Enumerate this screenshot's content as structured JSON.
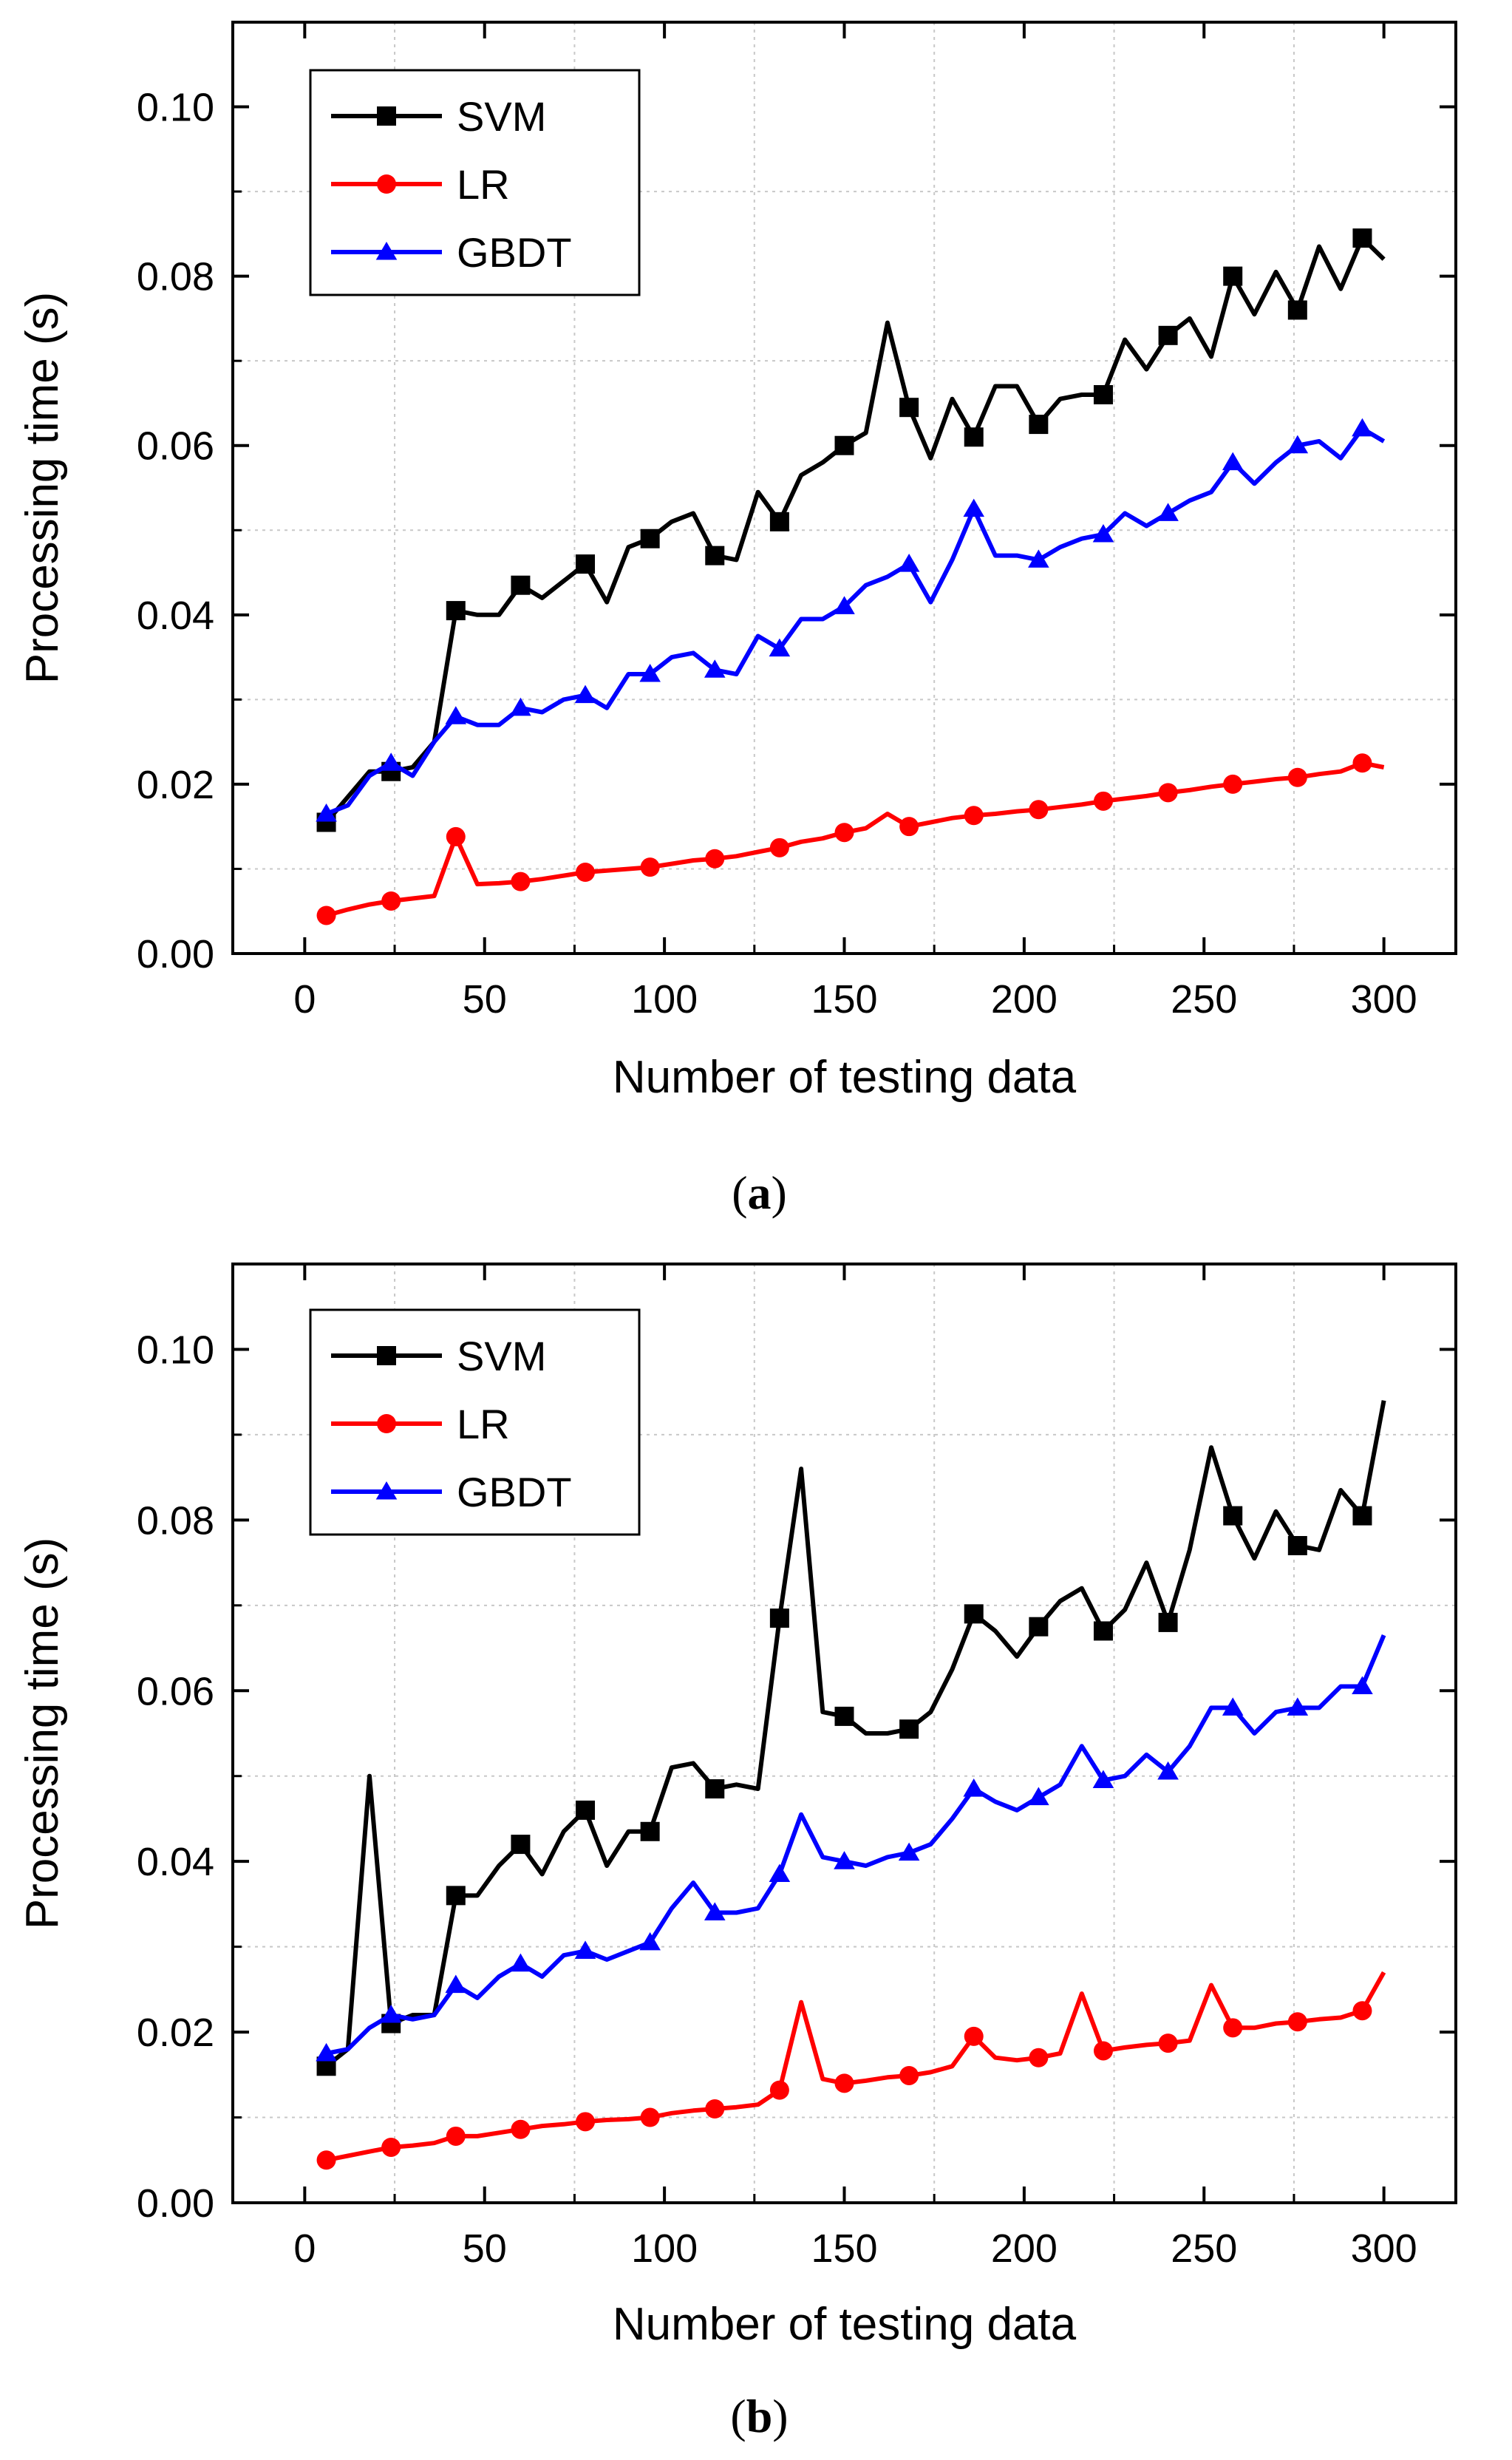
{
  "chart_data": [
    {
      "type": "line",
      "panel_label": "a",
      "xlabel": "Number of testing data",
      "ylabel": "Processing time (s)",
      "xlim": [
        -20,
        320
      ],
      "ylim": [
        0.0,
        0.11
      ],
      "x_ticks": [
        "0",
        "50",
        "100",
        "150",
        "200",
        "250",
        "300"
      ],
      "y_ticks": [
        "0.00",
        "0.02",
        "0.04",
        "0.06",
        "0.08",
        "0.10"
      ],
      "grid": true,
      "legend_position": "top-left",
      "series": [
        {
          "name": "SVM",
          "color": "#000000",
          "marker": "square",
          "x": [
            6,
            12,
            18,
            24,
            30,
            36,
            42,
            48,
            54,
            60,
            66,
            72,
            78,
            84,
            90,
            96,
            102,
            108,
            114,
            120,
            126,
            132,
            138,
            144,
            150,
            156,
            162,
            168,
            174,
            180,
            186,
            192,
            198,
            204,
            210,
            216,
            222,
            228,
            234,
            240,
            246,
            252,
            258,
            264,
            270,
            276,
            282,
            288,
            294,
            300
          ],
          "y": [
            0.0155,
            0.0185,
            0.0215,
            0.0215,
            0.022,
            0.025,
            0.0405,
            0.04,
            0.04,
            0.0435,
            0.042,
            0.044,
            0.046,
            0.0415,
            0.048,
            0.049,
            0.051,
            0.052,
            0.047,
            0.0465,
            0.0545,
            0.051,
            0.0565,
            0.058,
            0.06,
            0.0615,
            0.0745,
            0.0645,
            0.0585,
            0.0655,
            0.061,
            0.067,
            0.067,
            0.0625,
            0.0655,
            0.066,
            0.066,
            0.0725,
            0.069,
            0.073,
            0.075,
            0.0705,
            0.08,
            0.0755,
            0.0805,
            0.076,
            0.0835,
            0.0785,
            0.0845,
            0.082
          ]
        },
        {
          "name": "LR",
          "color": "#ff0000",
          "marker": "circle",
          "x": [
            6,
            12,
            18,
            24,
            30,
            36,
            42,
            48,
            54,
            60,
            66,
            72,
            78,
            84,
            90,
            96,
            102,
            108,
            114,
            120,
            126,
            132,
            138,
            144,
            150,
            156,
            162,
            168,
            174,
            180,
            186,
            192,
            198,
            204,
            210,
            216,
            222,
            228,
            234,
            240,
            246,
            252,
            258,
            264,
            270,
            276,
            282,
            288,
            294,
            300
          ],
          "y": [
            0.0045,
            0.0052,
            0.0058,
            0.0062,
            0.0065,
            0.0068,
            0.0138,
            0.0082,
            0.0083,
            0.0085,
            0.0088,
            0.0092,
            0.0096,
            0.0098,
            0.01,
            0.0102,
            0.0106,
            0.011,
            0.0112,
            0.0115,
            0.012,
            0.0125,
            0.0132,
            0.0136,
            0.0143,
            0.0148,
            0.0165,
            0.015,
            0.0155,
            0.016,
            0.0163,
            0.0165,
            0.0168,
            0.017,
            0.0173,
            0.0176,
            0.018,
            0.0183,
            0.0186,
            0.019,
            0.0193,
            0.0197,
            0.02,
            0.0203,
            0.0206,
            0.0208,
            0.0212,
            0.0215,
            0.0225,
            0.022
          ]
        },
        {
          "name": "GBDT",
          "color": "#0000ff",
          "marker": "triangle",
          "x": [
            6,
            12,
            18,
            24,
            30,
            36,
            42,
            48,
            54,
            60,
            66,
            72,
            78,
            84,
            90,
            96,
            102,
            108,
            114,
            120,
            126,
            132,
            138,
            144,
            150,
            156,
            162,
            168,
            174,
            180,
            186,
            192,
            198,
            204,
            210,
            216,
            222,
            228,
            234,
            240,
            246,
            252,
            258,
            264,
            270,
            276,
            282,
            288,
            294,
            300
          ],
          "y": [
            0.0165,
            0.0175,
            0.021,
            0.0225,
            0.021,
            0.025,
            0.028,
            0.027,
            0.027,
            0.029,
            0.0285,
            0.03,
            0.0305,
            0.029,
            0.033,
            0.033,
            0.035,
            0.0355,
            0.0335,
            0.033,
            0.0375,
            0.036,
            0.0395,
            0.0395,
            0.041,
            0.0435,
            0.0445,
            0.046,
            0.0415,
            0.0465,
            0.0525,
            0.047,
            0.047,
            0.0465,
            0.048,
            0.049,
            0.0495,
            0.052,
            0.0505,
            0.052,
            0.0535,
            0.0545,
            0.058,
            0.0555,
            0.058,
            0.06,
            0.0605,
            0.0585,
            0.062,
            0.0605
          ]
        }
      ]
    },
    {
      "type": "line",
      "panel_label": "b",
      "xlabel": "Number of testing data",
      "ylabel": "Processing time (s)",
      "xlim": [
        -20,
        320
      ],
      "ylim": [
        0.0,
        0.11
      ],
      "x_ticks": [
        "0",
        "50",
        "100",
        "150",
        "200",
        "250",
        "300"
      ],
      "y_ticks": [
        "0.00",
        "0.02",
        "0.04",
        "0.06",
        "0.08",
        "0.10"
      ],
      "grid": true,
      "legend_position": "top-left",
      "series": [
        {
          "name": "SVM",
          "color": "#000000",
          "marker": "square",
          "x": [
            6,
            12,
            18,
            24,
            30,
            36,
            42,
            48,
            54,
            60,
            66,
            72,
            78,
            84,
            90,
            96,
            102,
            108,
            114,
            120,
            126,
            132,
            138,
            144,
            150,
            156,
            162,
            168,
            174,
            180,
            186,
            192,
            198,
            204,
            210,
            216,
            222,
            228,
            234,
            240,
            246,
            252,
            258,
            264,
            270,
            276,
            282,
            288,
            294,
            300
          ],
          "y": [
            0.016,
            0.018,
            0.05,
            0.021,
            0.022,
            0.022,
            0.036,
            0.036,
            0.0395,
            0.042,
            0.0385,
            0.0435,
            0.046,
            0.0395,
            0.0435,
            0.0435,
            0.051,
            0.0515,
            0.0485,
            0.049,
            0.0485,
            0.0685,
            0.086,
            0.0575,
            0.057,
            0.055,
            0.055,
            0.0555,
            0.0575,
            0.0625,
            0.069,
            0.067,
            0.064,
            0.0675,
            0.0705,
            0.072,
            0.067,
            0.0695,
            0.075,
            0.068,
            0.0765,
            0.0885,
            0.0805,
            0.0755,
            0.081,
            0.077,
            0.0765,
            0.0835,
            0.0805,
            0.094
          ]
        },
        {
          "name": "LR",
          "color": "#ff0000",
          "marker": "circle",
          "x": [
            6,
            12,
            18,
            24,
            30,
            36,
            42,
            48,
            54,
            60,
            66,
            72,
            78,
            84,
            90,
            96,
            102,
            108,
            114,
            120,
            126,
            132,
            138,
            144,
            150,
            156,
            162,
            168,
            174,
            180,
            186,
            192,
            198,
            204,
            210,
            216,
            222,
            228,
            234,
            240,
            246,
            252,
            258,
            264,
            270,
            276,
            282,
            288,
            294,
            300
          ],
          "y": [
            0.005,
            0.0055,
            0.006,
            0.0065,
            0.0067,
            0.007,
            0.0078,
            0.0078,
            0.0082,
            0.0086,
            0.009,
            0.0092,
            0.0095,
            0.0097,
            0.0098,
            0.01,
            0.0105,
            0.0108,
            0.011,
            0.0112,
            0.0115,
            0.0132,
            0.0235,
            0.0145,
            0.014,
            0.0143,
            0.0147,
            0.0149,
            0.0153,
            0.016,
            0.0195,
            0.017,
            0.0167,
            0.017,
            0.0175,
            0.0245,
            0.0178,
            0.0182,
            0.0185,
            0.0187,
            0.019,
            0.0255,
            0.0205,
            0.0205,
            0.021,
            0.0212,
            0.0215,
            0.0217,
            0.0225,
            0.027
          ]
        },
        {
          "name": "GBDT",
          "color": "#0000ff",
          "marker": "triangle",
          "x": [
            6,
            12,
            18,
            24,
            30,
            36,
            42,
            48,
            54,
            60,
            66,
            72,
            78,
            84,
            90,
            96,
            102,
            108,
            114,
            120,
            126,
            132,
            138,
            144,
            150,
            156,
            162,
            168,
            174,
            180,
            186,
            192,
            198,
            204,
            210,
            216,
            222,
            228,
            234,
            240,
            246,
            252,
            258,
            264,
            270,
            276,
            282,
            288,
            294,
            300
          ],
          "y": [
            0.0175,
            0.018,
            0.0205,
            0.022,
            0.0215,
            0.022,
            0.0255,
            0.024,
            0.0265,
            0.028,
            0.0265,
            0.029,
            0.0295,
            0.0285,
            0.0295,
            0.0305,
            0.0345,
            0.0375,
            0.034,
            0.034,
            0.0345,
            0.0385,
            0.0455,
            0.0405,
            0.04,
            0.0395,
            0.0405,
            0.041,
            0.042,
            0.045,
            0.0485,
            0.047,
            0.046,
            0.0475,
            0.049,
            0.0535,
            0.0495,
            0.05,
            0.0525,
            0.0505,
            0.0535,
            0.058,
            0.058,
            0.055,
            0.0575,
            0.058,
            0.058,
            0.0605,
            0.0605,
            0.0665
          ]
        }
      ]
    }
  ]
}
